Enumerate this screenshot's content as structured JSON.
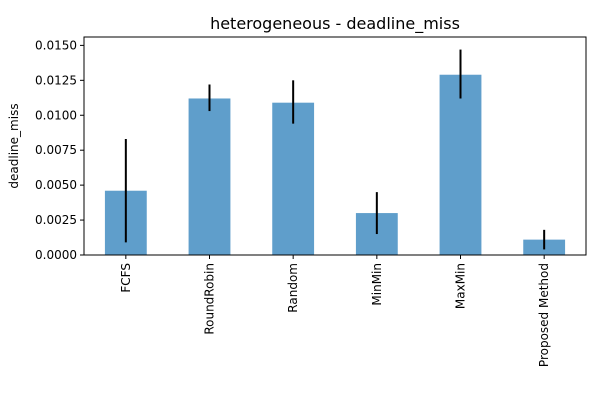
{
  "chart_data": {
    "type": "bar",
    "title": "heterogeneous - deadline_miss",
    "xlabel": "",
    "ylabel": "deadline_miss",
    "categories": [
      "FCFS",
      "RoundRobin",
      "Random",
      "MinMin",
      "MaxMin",
      "Proposed Method"
    ],
    "values": [
      0.0046,
      0.0112,
      0.0109,
      0.003,
      0.0129,
      0.0011
    ],
    "error_low": [
      0.0009,
      0.0103,
      0.0094,
      0.0015,
      0.0112,
      0.0004
    ],
    "error_high": [
      0.0083,
      0.0122,
      0.0125,
      0.0045,
      0.0147,
      0.0018
    ],
    "ylim": [
      0,
      0.0156
    ],
    "yticks": [
      0.0,
      0.0025,
      0.005,
      0.0075,
      0.01,
      0.0125,
      0.015
    ],
    "ytick_labels": [
      "0.0000",
      "0.0025",
      "0.0050",
      "0.0075",
      "0.0100",
      "0.0125",
      "0.0150"
    ],
    "grid": false,
    "colors": {
      "bar": "#5f9ecb",
      "error_bar": "#000000",
      "axes": "#000000",
      "background": "#ffffff"
    }
  }
}
